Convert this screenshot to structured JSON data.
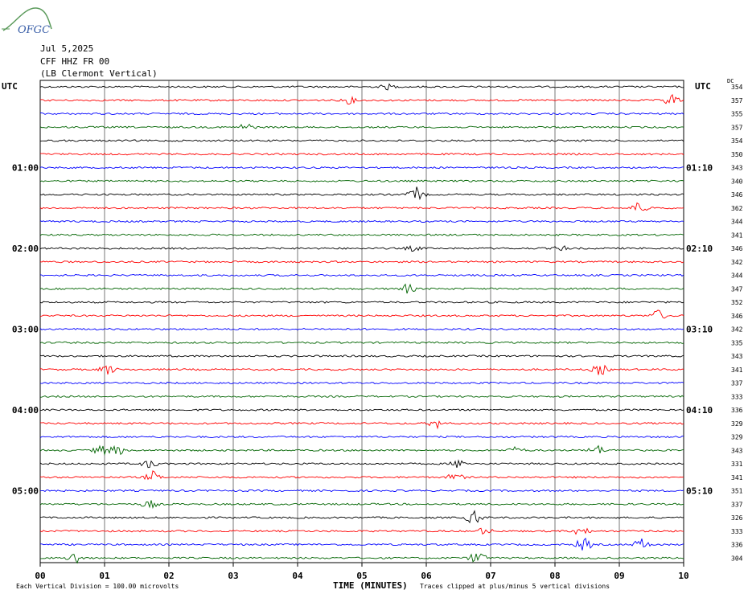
{
  "logo": {
    "text": "OFGC"
  },
  "header": {
    "date": "Jul 5,2025",
    "station": "CFF HHZ FR 00",
    "location": "(LB  Clermont Vertical)"
  },
  "utc_left_label": "UTC",
  "utc_right_label": "UTC",
  "dc_label": "DC",
  "footer": {
    "scale_note": "Each Vertical Division =  100.00 microvolts",
    "clip_note": "Traces clipped at plus/minus 5 vertical divisions"
  },
  "chart_data": {
    "type": "line",
    "title": "",
    "xlabel": "TIME (MINUTES)",
    "ylabel": "",
    "xlim": [
      0,
      10
    ],
    "x_ticks": [
      "00",
      "01",
      "02",
      "03",
      "04",
      "05",
      "06",
      "07",
      "08",
      "09",
      "10"
    ],
    "left_time_labels": [
      {
        "row": 6,
        "label": "01:00"
      },
      {
        "row": 12,
        "label": "02:00"
      },
      {
        "row": 18,
        "label": "03:00"
      },
      {
        "row": 24,
        "label": "04:00"
      },
      {
        "row": 30,
        "label": "05:00"
      }
    ],
    "right_time_labels": [
      {
        "row": 6,
        "label": "01:10"
      },
      {
        "row": 12,
        "label": "02:10"
      },
      {
        "row": 18,
        "label": "03:10"
      },
      {
        "row": 24,
        "label": "04:10"
      },
      {
        "row": 30,
        "label": "05:10"
      }
    ],
    "trace_colors": [
      "#000000",
      "#ff0000",
      "#0000ff",
      "#006400"
    ],
    "dc_offsets": [
      354,
      357,
      355,
      357,
      354,
      350,
      343,
      340,
      346,
      362,
      344,
      341,
      346,
      342,
      344,
      347,
      352,
      346,
      342,
      335,
      343,
      341,
      337,
      333,
      336,
      329,
      329,
      343,
      331,
      341,
      351,
      337,
      326,
      333,
      336,
      304
    ],
    "events": [
      {
        "row": 0,
        "minute": 5.4,
        "amp": 3
      },
      {
        "row": 1,
        "minute": 4.8,
        "amp": 4
      },
      {
        "row": 1,
        "minute": 9.8,
        "amp": 8
      },
      {
        "row": 3,
        "minute": 3.2,
        "amp": 5
      },
      {
        "row": 8,
        "minute": 5.85,
        "amp": 9
      },
      {
        "row": 9,
        "minute": 9.3,
        "amp": 8
      },
      {
        "row": 12,
        "minute": 5.8,
        "amp": 3
      },
      {
        "row": 12,
        "minute": 8.1,
        "amp": 3
      },
      {
        "row": 15,
        "minute": 5.7,
        "amp": 6
      },
      {
        "row": 17,
        "minute": 9.6,
        "amp": 7
      },
      {
        "row": 21,
        "minute": 1.05,
        "amp": 6
      },
      {
        "row": 21,
        "minute": 8.7,
        "amp": 7
      },
      {
        "row": 25,
        "minute": 6.15,
        "amp": 6
      },
      {
        "row": 27,
        "minute": 0.95,
        "amp": 6
      },
      {
        "row": 27,
        "minute": 1.2,
        "amp": 6
      },
      {
        "row": 27,
        "minute": 7.4,
        "amp": 4
      },
      {
        "row": 27,
        "minute": 8.65,
        "amp": 6
      },
      {
        "row": 28,
        "minute": 1.7,
        "amp": 5
      },
      {
        "row": 28,
        "minute": 6.5,
        "amp": 5
      },
      {
        "row": 29,
        "minute": 1.75,
        "amp": 7
      },
      {
        "row": 29,
        "minute": 6.45,
        "amp": 5
      },
      {
        "row": 31,
        "minute": 1.7,
        "amp": 5
      },
      {
        "row": 32,
        "minute": 6.75,
        "amp": 9
      },
      {
        "row": 33,
        "minute": 6.9,
        "amp": 4
      },
      {
        "row": 33,
        "minute": 8.4,
        "amp": 6
      },
      {
        "row": 34,
        "minute": 8.45,
        "amp": 8
      },
      {
        "row": 34,
        "minute": 9.35,
        "amp": 7
      },
      {
        "row": 35,
        "minute": 0.55,
        "amp": 8
      },
      {
        "row": 35,
        "minute": 6.8,
        "amp": 9
      }
    ]
  }
}
